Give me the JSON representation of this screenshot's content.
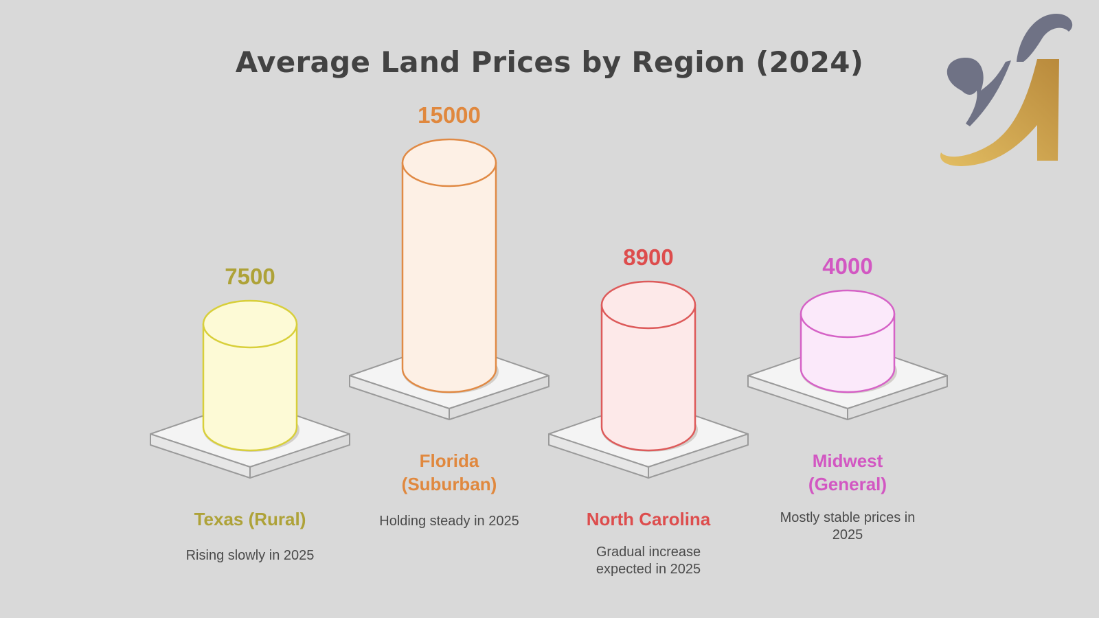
{
  "chart_data": {
    "type": "bar",
    "title": "Average Land Prices by Region (2024)",
    "xlabel": "",
    "ylabel": "",
    "categories": [
      "Texas (Rural)",
      "Florida (Suburban)",
      "North Carolina",
      "Midwest (General)"
    ],
    "values": [
      7500,
      15000,
      8900,
      4000
    ],
    "value_labels": [
      "7500",
      "15000",
      "8900",
      "4000"
    ],
    "label_lines": [
      [
        "Texas (Rural)"
      ],
      [
        "Florida",
        "(Suburban)"
      ],
      [
        "North Carolina"
      ],
      [
        "Midwest",
        "(General)"
      ]
    ],
    "notes": [
      [
        "Rising slowly in 2025"
      ],
      [
        "Holding steady in 2025"
      ],
      [
        "Gradual increase",
        "expected in 2025"
      ],
      [
        "Mostly stable prices in",
        "2025"
      ]
    ],
    "colors": [
      {
        "stroke": "#d8cf3a",
        "fill": "#fdfad6",
        "text": "#aea238"
      },
      {
        "stroke": "#e08a45",
        "fill": "#fdf0e5",
        "text": "#e0883e"
      },
      {
        "stroke": "#dd5a5a",
        "fill": "#fde9e9",
        "text": "#dd4d4d"
      },
      {
        "stroke": "#d562c6",
        "fill": "#fbe9fa",
        "text": "#d257c2"
      }
    ],
    "shape": "3d-cylinder-on-platform",
    "grid": false,
    "legend": "none"
  },
  "logo": {
    "icon": "script-yk-monogram",
    "colors": [
      "#6f7285",
      "#d4aa55",
      "#b98a3c"
    ]
  }
}
